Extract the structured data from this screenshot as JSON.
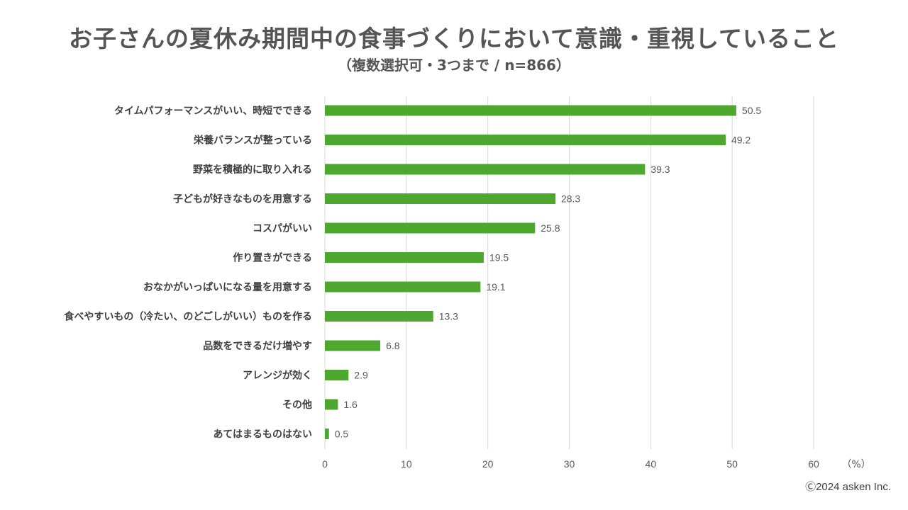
{
  "chart_data": {
    "type": "bar",
    "orientation": "horizontal",
    "title": "お子さんの夏休み期間中の食事づくりにおいて意識・重視していること",
    "subtitle": "（複数選択可・3つまで / n=866）",
    "categories": [
      "タイムパフォーマンスがいい、時短でできる",
      "栄養バランスが整っている",
      "野菜を積極的に取り入れる",
      "子どもが好きなものを用意する",
      "コスパがいい",
      "作り置きができる",
      "おなかがいっぱいになる量を用意する",
      "食べやすいもの（冷たい、のどごしがいい）ものを作る",
      "品数をできるだけ増やす",
      "アレンジが効く",
      "その他",
      "あてはまるものはない"
    ],
    "values": [
      50.5,
      49.2,
      39.3,
      28.3,
      25.8,
      19.5,
      19.1,
      13.3,
      6.8,
      2.9,
      1.6,
      0.5
    ],
    "value_labels": [
      "50.5",
      "49.2",
      "39.3",
      "28.3",
      "25.8",
      "19.5",
      "19.1",
      "13.3",
      "6.8",
      "2.9",
      "1.6",
      "0.5"
    ],
    "xlim": [
      0,
      60
    ],
    "xticks": [
      0,
      10,
      20,
      30,
      40,
      50,
      60
    ],
    "xunit": "（%）",
    "grid": true,
    "legend": "none",
    "bar_color": "#4EA72E",
    "grid_color": "#D9D9D9"
  },
  "footer": {
    "copyright": "Ⓒ2024 asken Inc."
  }
}
